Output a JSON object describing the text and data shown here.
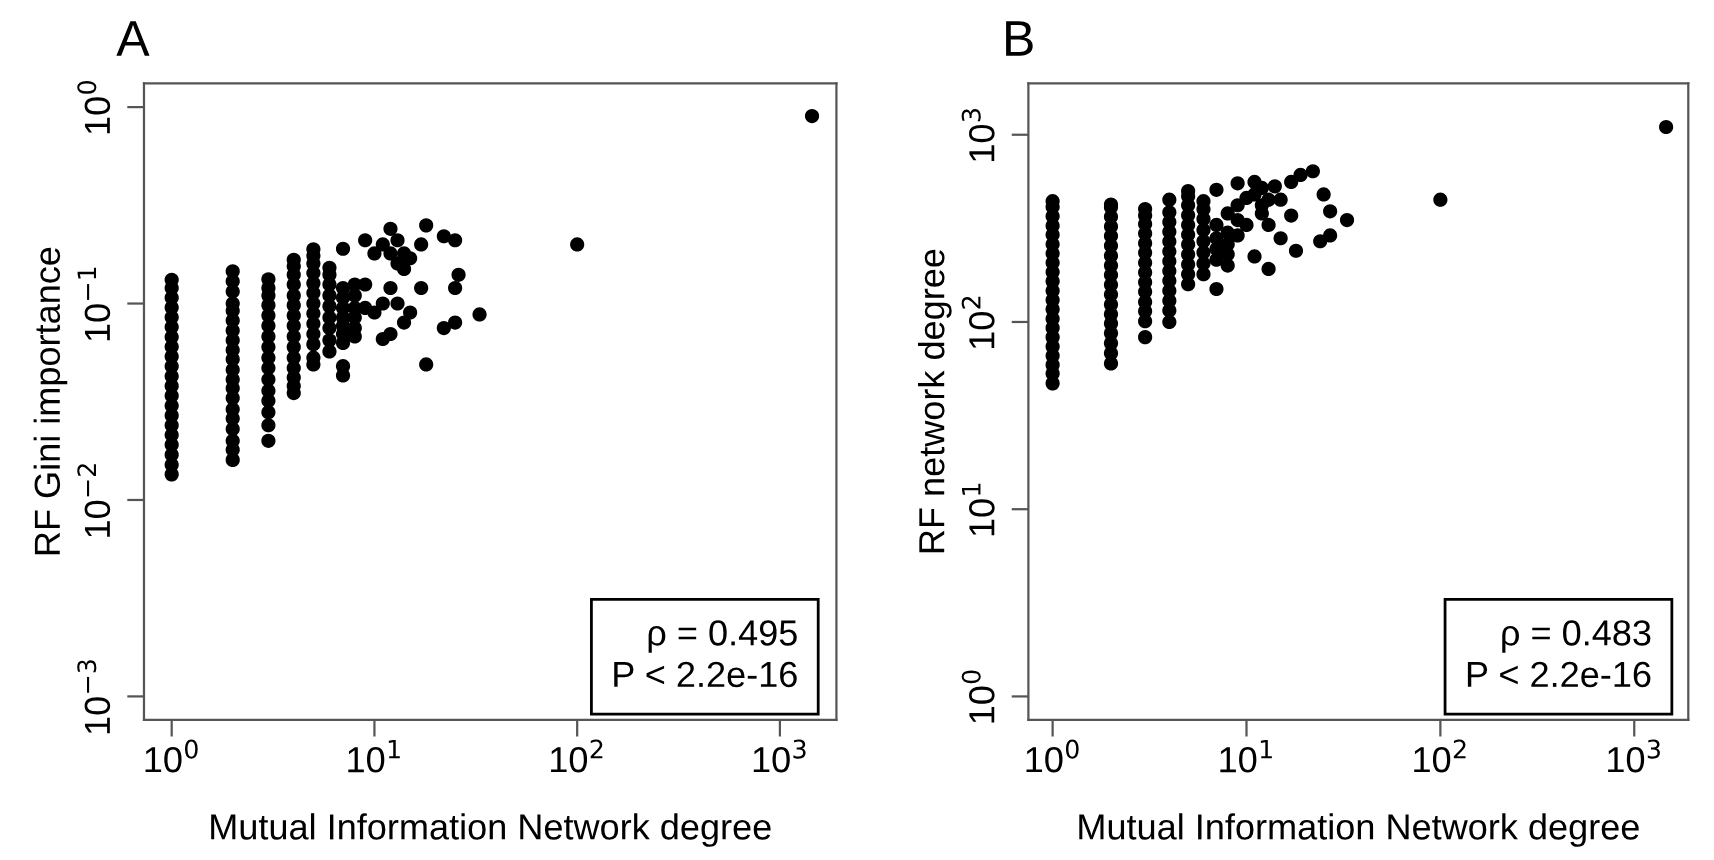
{
  "chart_data": [
    {
      "type": "scatter",
      "title": "A",
      "xlabel": "Mutual Information Network degree",
      "ylabel": "RF Gini importance",
      "log": "xy",
      "grid": false,
      "marker": "circle",
      "xlim": [
        0.73,
        1900
      ],
      "ylim": [
        0.00076,
        1.32
      ],
      "xticks": [
        {
          "value": 1,
          "label": "10$^{0}$"
        },
        {
          "value": 10,
          "label": "10$^{1}$"
        },
        {
          "value": 100,
          "label": "10$^{2}$"
        },
        {
          "value": 1000,
          "label": "10$^{3}$"
        }
      ],
      "yticks": [
        {
          "value": 0.001,
          "label": "10$^{−3}$"
        },
        {
          "value": 0.01,
          "label": "10$^{−2}$"
        },
        {
          "value": 0.1,
          "label": "10$^{−1}$"
        },
        {
          "value": 1,
          "label": "10$^{0}$"
        }
      ],
      "annotations": [
        "ρ = 0.495",
        "P < 2.2e-16"
      ],
      "series": [
        {
          "color": "#000000",
          "x": [
            1,
            1,
            1,
            1,
            1,
            1,
            1,
            1,
            1,
            1,
            1,
            1,
            1,
            1,
            1,
            1,
            1,
            1,
            1,
            1,
            1,
            2,
            2,
            2,
            2,
            2,
            2,
            2,
            2,
            2,
            2,
            2,
            2,
            2,
            2,
            2,
            2,
            2,
            2,
            2,
            2,
            3,
            3,
            3,
            3,
            3,
            3,
            3,
            3,
            3,
            3,
            3,
            3,
            3,
            3,
            3,
            3,
            4,
            4,
            4,
            4,
            4,
            4,
            4,
            4,
            4,
            4,
            4,
            4,
            4,
            4,
            4,
            5,
            5,
            5,
            5,
            5,
            5,
            5,
            5,
            5,
            5,
            5,
            5,
            5,
            6,
            6,
            6,
            6,
            6,
            6,
            6,
            6,
            6,
            7,
            7,
            7,
            7,
            7,
            7,
            7,
            7,
            7,
            7,
            8,
            8,
            8,
            8,
            8,
            8,
            9,
            9,
            9,
            10,
            10,
            11,
            11,
            11,
            12,
            12,
            12,
            12,
            13,
            13,
            13,
            14,
            14,
            14,
            15,
            15,
            17,
            17,
            18,
            18,
            22,
            22,
            25,
            25,
            25,
            26,
            33,
            100,
            1440
          ],
          "values": [
            0.0135,
            0.0151,
            0.017,
            0.0191,
            0.0214,
            0.024,
            0.0269,
            0.0302,
            0.0339,
            0.038,
            0.0427,
            0.0479,
            0.0537,
            0.0603,
            0.0676,
            0.0759,
            0.0851,
            0.0955,
            0.107,
            0.12,
            0.132,
            0.016,
            0.018,
            0.02,
            0.023,
            0.026,
            0.029,
            0.033,
            0.037,
            0.041,
            0.046,
            0.052,
            0.058,
            0.065,
            0.073,
            0.082,
            0.092,
            0.1,
            0.115,
            0.13,
            0.146,
            0.02,
            0.024,
            0.028,
            0.032,
            0.036,
            0.041,
            0.047,
            0.053,
            0.06,
            0.068,
            0.077,
            0.087,
            0.098,
            0.11,
            0.12,
            0.133,
            0.035,
            0.038,
            0.042,
            0.047,
            0.053,
            0.06,
            0.068,
            0.077,
            0.087,
            0.098,
            0.11,
            0.125,
            0.14,
            0.155,
            0.167,
            0.049,
            0.053,
            0.062,
            0.07,
            0.079,
            0.089,
            0.1,
            0.113,
            0.127,
            0.143,
            0.16,
            0.175,
            0.189,
            0.057,
            0.065,
            0.075,
            0.085,
            0.097,
            0.11,
            0.125,
            0.14,
            0.152,
            0.19,
            0.12,
            0.107,
            0.095,
            0.085,
            0.077,
            0.07,
            0.063,
            0.048,
            0.043,
            0.125,
            0.11,
            0.095,
            0.085,
            0.075,
            0.068,
            0.21,
            0.125,
            0.095,
            0.18,
            0.09,
            0.2,
            0.1,
            0.066,
            0.24,
            0.18,
            0.12,
            0.07,
            0.21,
            0.16,
            0.1,
            0.18,
            0.15,
            0.08,
            0.17,
            0.09,
            0.2,
            0.12,
            0.25,
            0.049,
            0.22,
            0.075,
            0.21,
            0.12,
            0.08,
            0.14,
            0.088,
            0.2,
            0.9
          ]
        }
      ]
    },
    {
      "type": "scatter",
      "title": "B",
      "xlabel": "Mutual Information Network degree",
      "ylabel": "RF network degree",
      "log": "xy",
      "grid": false,
      "marker": "circle",
      "xlim": [
        0.75,
        1900
      ],
      "ylim": [
        0.75,
        1880
      ],
      "xticks": [
        {
          "value": 1,
          "label": "10$^{0}$"
        },
        {
          "value": 10,
          "label": "10$^{1}$"
        },
        {
          "value": 100,
          "label": "10$^{2}$"
        },
        {
          "value": 1000,
          "label": "10$^{3}$"
        }
      ],
      "yticks": [
        {
          "value": 1,
          "label": "10$^{0}$"
        },
        {
          "value": 10,
          "label": "10$^{1}$"
        },
        {
          "value": 100,
          "label": "10$^{2}$"
        },
        {
          "value": 1000,
          "label": "10$^{3}$"
        }
      ],
      "annotations": [
        "ρ = 0.483",
        "P < 2.2e-16"
      ],
      "series": [
        {
          "color": "#000000",
          "x": [
            1,
            1,
            1,
            1,
            1,
            1,
            1,
            1,
            1,
            1,
            1,
            1,
            1,
            1,
            1,
            1,
            1,
            1,
            1,
            1,
            1,
            2,
            2,
            2,
            2,
            2,
            2,
            2,
            2,
            2,
            2,
            2,
            2,
            2,
            2,
            2,
            2,
            2,
            2,
            3,
            3,
            3,
            3,
            3,
            3,
            3,
            3,
            3,
            3,
            3,
            3,
            3,
            3,
            4,
            4,
            4,
            4,
            4,
            4,
            4,
            4,
            4,
            4,
            4,
            4,
            4,
            5,
            5,
            5,
            5,
            5,
            5,
            5,
            5,
            5,
            5,
            5,
            6,
            6,
            6,
            6,
            6,
            6,
            6,
            6,
            7,
            7,
            7,
            7,
            7,
            7,
            8,
            8,
            8,
            8,
            8,
            9,
            9,
            9,
            9,
            10,
            10,
            11,
            11,
            11,
            12,
            12,
            12,
            13,
            13,
            13,
            14,
            15,
            15,
            17,
            17,
            18,
            19,
            22,
            24,
            25,
            27,
            27,
            33,
            100,
            1460
          ],
          "values": [
            47,
            53,
            59,
            66,
            74,
            83,
            93,
            104,
            117,
            131,
            147,
            165,
            185,
            207,
            232,
            260,
            292,
            327,
            367,
            411,
            442,
            60,
            68,
            77,
            87,
            98,
            110,
            124,
            140,
            158,
            178,
            200,
            226,
            255,
            288,
            324,
            365,
            410,
            424,
            83,
            101,
            114,
            128,
            145,
            163,
            184,
            207,
            234,
            263,
            297,
            334,
            370,
            401,
            100,
            115,
            130,
            147,
            166,
            187,
            211,
            238,
            269,
            303,
            342,
            385,
            450,
            159,
            180,
            203,
            229,
            259,
            292,
            330,
            372,
            420,
            470,
            500,
            180,
            205,
            235,
            270,
            310,
            355,
            400,
            442,
            508,
            330,
            280,
            245,
            215,
            150,
            380,
            300,
            260,
            230,
            200,
            550,
            420,
            350,
            290,
            460,
            330,
            560,
            480,
            224,
            520,
            420,
            380,
            192,
            450,
            330,
            530,
            450,
            280,
            560,
            370,
            240,
            610,
            638,
            270,
            480,
            390,
            290,
            350,
            450,
            1100
          ]
        }
      ]
    }
  ]
}
